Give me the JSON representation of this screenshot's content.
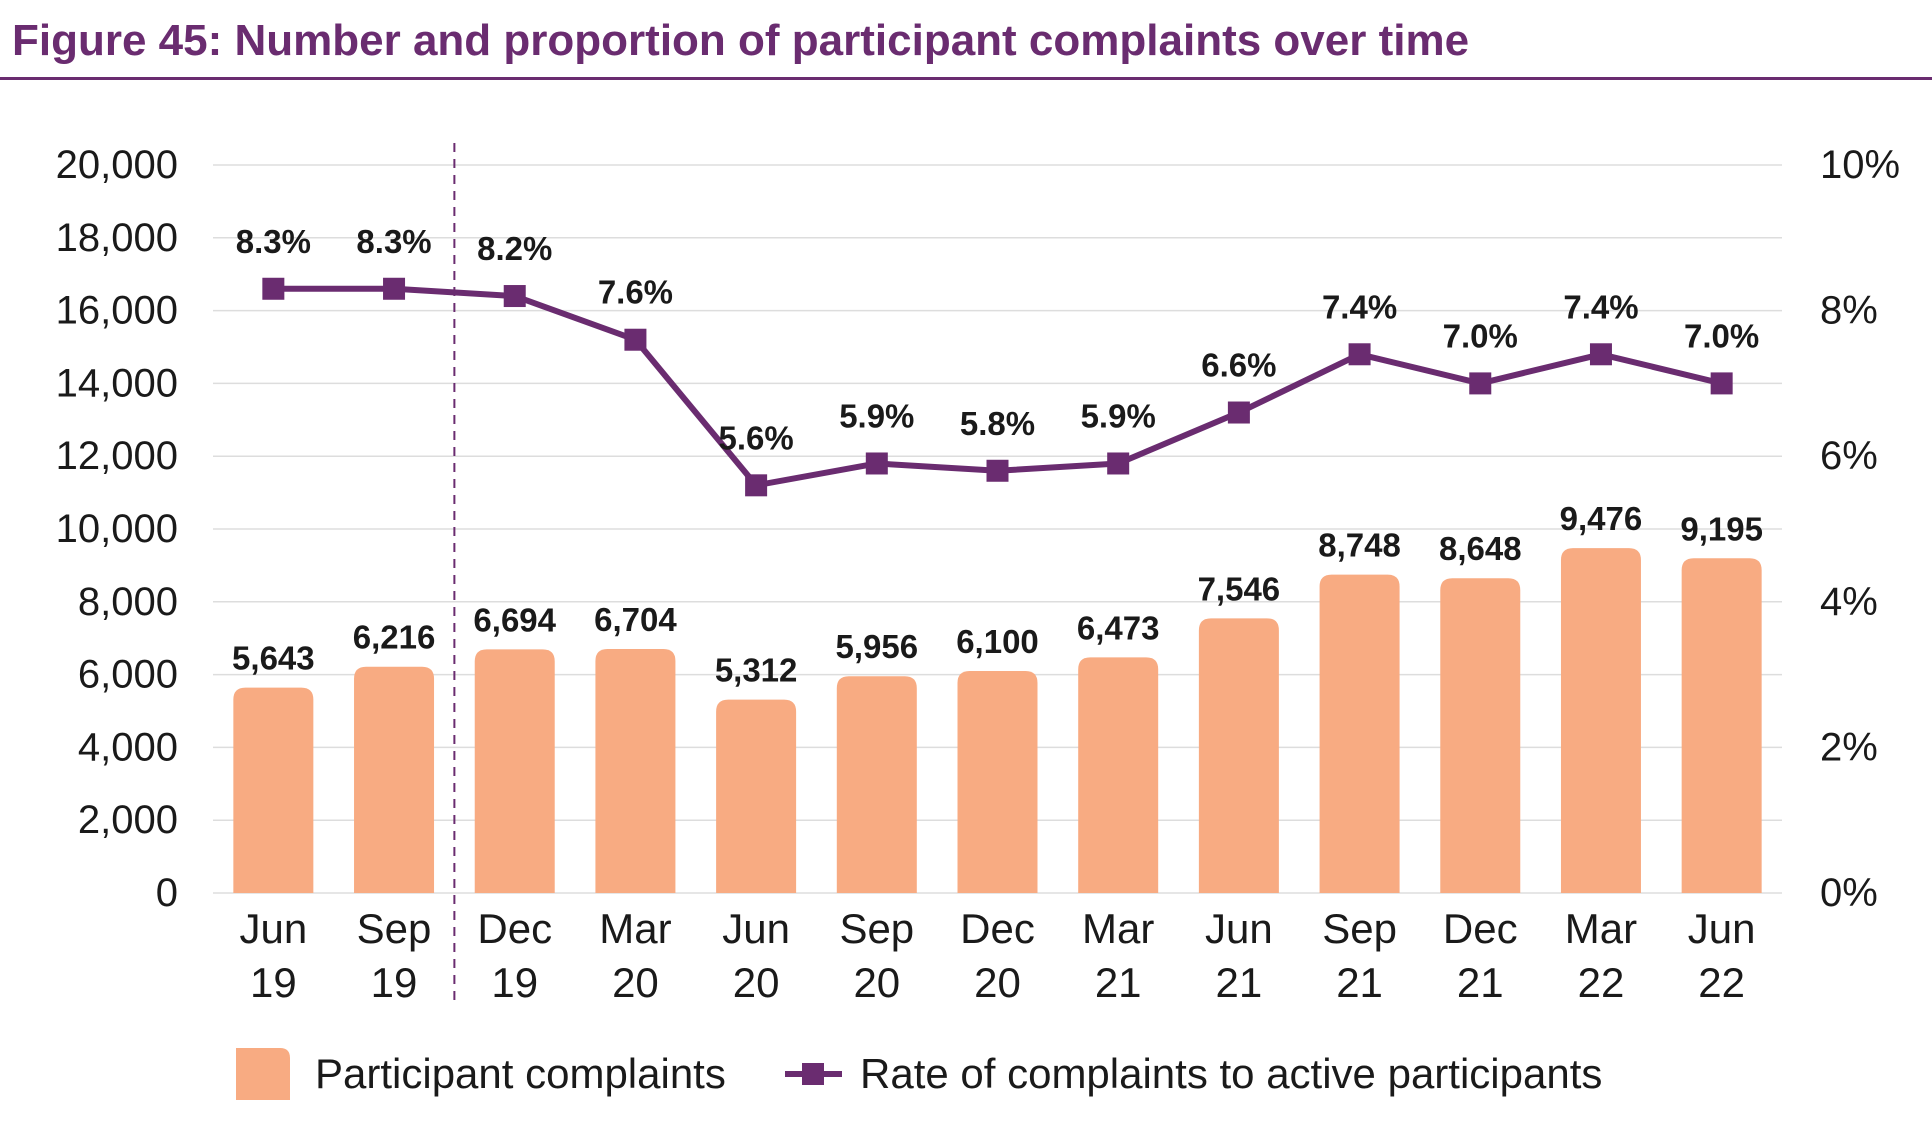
{
  "title": "Figure 45: Number and proportion of participant complaints over time",
  "colors": {
    "bar": "#f8ab82",
    "line": "#6a2c70",
    "title": "#6a2c70",
    "grid": "#dddddd"
  },
  "chart_data": {
    "type": "bar",
    "categories": [
      [
        "Jun",
        "19"
      ],
      [
        "Sep",
        "19"
      ],
      [
        "Dec",
        "19"
      ],
      [
        "Mar",
        "20"
      ],
      [
        "Jun",
        "20"
      ],
      [
        "Sep",
        "20"
      ],
      [
        "Dec",
        "20"
      ],
      [
        "Mar",
        "21"
      ],
      [
        "Jun",
        "21"
      ],
      [
        "Sep",
        "21"
      ],
      [
        "Dec",
        "21"
      ],
      [
        "Mar",
        "22"
      ],
      [
        "Jun",
        "22"
      ]
    ],
    "series": [
      {
        "name": "Participant complaints",
        "type": "bar",
        "axis": "left",
        "values": [
          5643,
          6216,
          6694,
          6704,
          5312,
          5956,
          6100,
          6473,
          7546,
          8748,
          8648,
          9476,
          9195
        ],
        "labels": [
          "5,643",
          "6,216",
          "6,694",
          "6,704",
          "5,312",
          "5,956",
          "6,100",
          "6,473",
          "7,546",
          "8,748",
          "8,648",
          "9,476",
          "9,195"
        ]
      },
      {
        "name": "Rate of complaints to active participants",
        "type": "line",
        "axis": "right",
        "values": [
          8.3,
          8.3,
          8.2,
          7.6,
          5.6,
          5.9,
          5.8,
          5.9,
          6.6,
          7.4,
          7.0,
          7.4,
          7.0
        ],
        "labels": [
          "8.3%",
          "8.3%",
          "8.2%",
          "7.6%",
          "5.6%",
          "5.9%",
          "5.8%",
          "5.9%",
          "6.6%",
          "7.4%",
          "7.0%",
          "7.4%",
          "7.0%"
        ]
      }
    ],
    "y_left": {
      "ylim": [
        0,
        20000
      ],
      "ticks": [
        "0",
        "2,000",
        "4,000",
        "6,000",
        "8,000",
        "10,000",
        "12,000",
        "14,000",
        "16,000",
        "18,000",
        "20,000"
      ]
    },
    "y_right": {
      "ylim": [
        0,
        10
      ],
      "ticks": [
        "0%",
        "2%",
        "4%",
        "6%",
        "8%",
        "10%"
      ]
    },
    "grid": true,
    "legend_position": "bottom",
    "reference_line": {
      "type": "dashed-vertical",
      "between": [
        "Sep 19",
        "Dec 19"
      ]
    }
  }
}
